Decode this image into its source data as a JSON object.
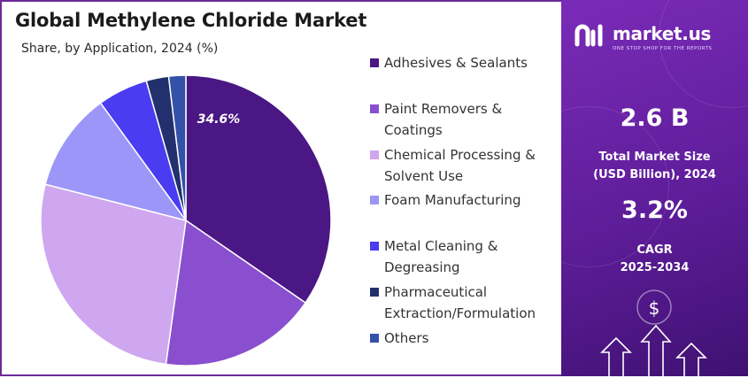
{
  "title": "Global Methylene Chloride Market",
  "subtitle": "Share, by Application, 2024 (%)",
  "chart_data": {
    "type": "pie",
    "title": "Global Methylene Chloride Market",
    "subtitle": "Share, by Application, 2024 (%)",
    "categories": [
      "Adhesives & Sealants",
      "Paint Removers & Coatings",
      "Chemical Processing & Solvent Use",
      "Foam Manufacturing",
      "Metal Cleaning & Degreasing",
      "Pharmaceutical Extraction/Formulation",
      "Others"
    ],
    "values": [
      34.6,
      17.6,
      26.8,
      11.0,
      5.6,
      2.5,
      1.9
    ],
    "data_labels": [
      "34.6%"
    ],
    "colors": [
      "#4a1784",
      "#8a4fcf",
      "#cfa6f0",
      "#9b96f7",
      "#4a3cf1",
      "#22306d",
      "#3451a8"
    ],
    "legend_position": "right"
  },
  "legend": {
    "items": [
      {
        "label_lines": [
          "Adhesives & Sealants"
        ],
        "color": "#4a1784"
      },
      {
        "label_lines": [
          "Paint Removers &",
          "Coatings"
        ],
        "color": "#8a4fcf"
      },
      {
        "label_lines": [
          "Chemical Processing &",
          "Solvent Use"
        ],
        "color": "#cfa6f0"
      },
      {
        "label_lines": [
          "Foam Manufacturing"
        ],
        "color": "#9b96f7"
      },
      {
        "label_lines": [
          "Metal Cleaning &",
          "Degreasing"
        ],
        "color": "#4a3cf1"
      },
      {
        "label_lines": [
          "Pharmaceutical",
          "Extraction/Formulation"
        ],
        "color": "#22306d"
      },
      {
        "label_lines": [
          "Others"
        ],
        "color": "#3451a8"
      }
    ]
  },
  "sidebar": {
    "brand_name": "market.us",
    "brand_tagline": "ONE STOP SHOP FOR THE REPORTS",
    "market_size_value": "2.6 B",
    "market_size_label_1": "Total Market Size",
    "market_size_label_2": "(USD Billion), 2024",
    "cagr_value": "3.2%",
    "cagr_label_1": "CAGR",
    "cagr_label_2": "2025-2034",
    "dollar_symbol": "$",
    "icons": [
      "logo-icon",
      "dollar-icon",
      "arrow-up-icon"
    ]
  }
}
